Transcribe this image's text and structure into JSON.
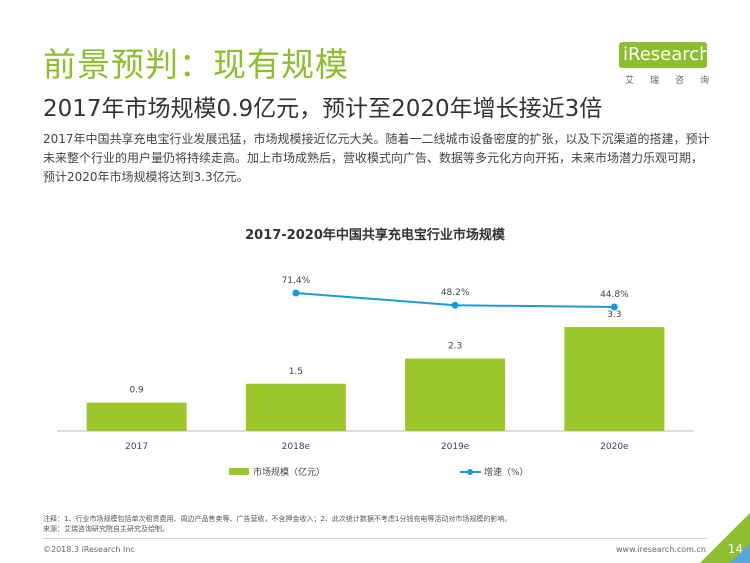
{
  "header": {
    "title": "前景预判：现有规模",
    "subtitle": "2017年市场规模0.9亿元，预计至2020年增长接近3倍",
    "paragraph": "2017年中国共享充电宝行业发展迅猛，市场规模接近亿元大关。随着一二线城市设备密度的扩张，以及下沉渠道的搭建，预计未来整个行业的用户量仍将持续走高。加上市场成熟后，营收模式向广告、数据等多元化方向开拓，未来市场潜力乐观可期，预计2020年市场规模将达到3.3亿元。"
  },
  "logo": {
    "text": "iResearch",
    "sub": "艾瑞咨询"
  },
  "chart_data": {
    "type": "bar",
    "title": "2017-2020年中国共享充电宝行业市场规模",
    "categories": [
      "2017",
      "2018e",
      "2019e",
      "2020e"
    ],
    "series": [
      {
        "name": "市场规模（亿元）",
        "type": "bar",
        "values": [
          0.9,
          1.5,
          2.3,
          3.3
        ],
        "labels": [
          "0.9",
          "1.5",
          "2.3",
          "3.3"
        ],
        "color": "#9bc72c"
      },
      {
        "name": "增速（%）",
        "type": "line",
        "values": [
          null,
          71.4,
          48.2,
          44.8
        ],
        "labels": [
          "",
          "71.4%",
          "48.2%",
          "44.8%"
        ],
        "color": "#1a9ad6"
      }
    ],
    "legend": "bottom",
    "grid": false
  },
  "footer": {
    "notes": "注释：1、行业市场规模包括单次租赁费用、周边产品售卖等、广告营收，不含押金收入；2、此次统计数据不考虑1分钱充电等活动对市场规模的影响。",
    "source": "来源：艾瑞咨询研究院自主研究及绘制。",
    "copyright": "©2018.3 iResearch Inc",
    "url": "www.iresearch.com.cn",
    "page": "14"
  }
}
